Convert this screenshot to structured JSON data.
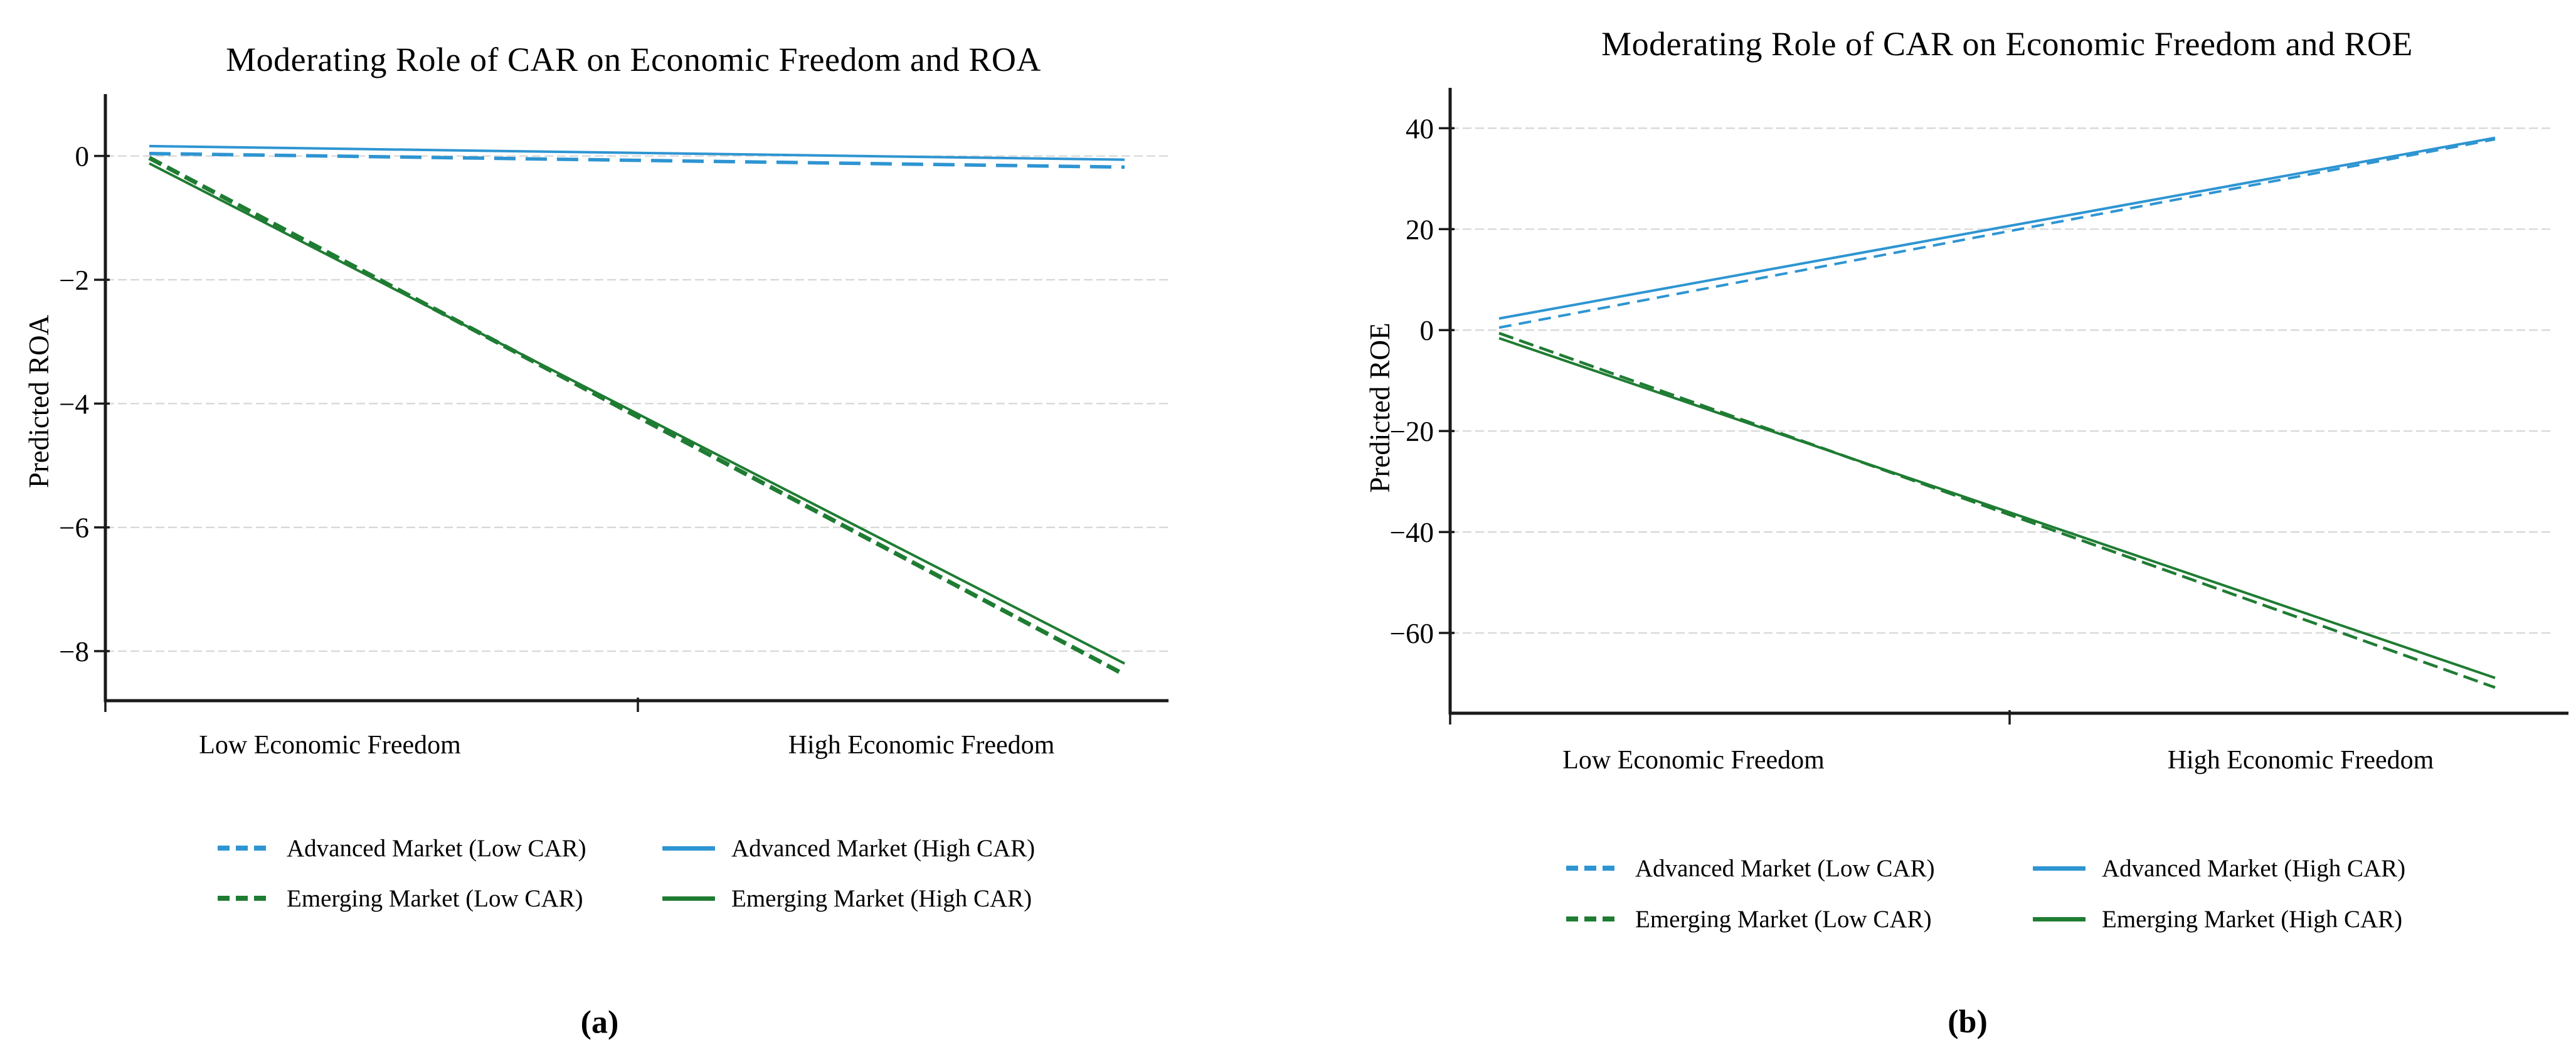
{
  "page": {
    "background": "#ffffff"
  },
  "style": {
    "axis_color": "#1a1a1a",
    "grid_color": "#d6d6d6",
    "text_color": "#000000",
    "advanced_color": "#2e95d2",
    "emerging_color": "#1f7c33"
  },
  "chart_data": [
    {
      "type": "line",
      "title": "Moderating Role of CAR on Economic Freedom and ROA",
      "ylabel": "Predicted ROA",
      "xlabel": "",
      "caption": "(a)",
      "x_categories": [
        "Low Economic Freedom",
        "High Economic Freedom"
      ],
      "y_ticks": [
        0,
        -2,
        -4,
        -6,
        -8
      ],
      "ylim": [
        1.0,
        -8.8
      ],
      "grid": true,
      "legend_position": "bottom",
      "series": [
        {
          "name": "advanced-market-low-car",
          "label": "Advanced Market (Low CAR)",
          "color": "#2e95d2",
          "line_style": "dashed",
          "values": [
            0.04,
            -0.18
          ]
        },
        {
          "name": "advanced-market-high-car",
          "label": "Advanced Market (High CAR)",
          "color": "#2e95d2",
          "line_style": "solid",
          "values": [
            0.16,
            -0.06
          ]
        },
        {
          "name": "emerging-market-low-car",
          "label": "Emerging Market (Low CAR)",
          "color": "#1f7c33",
          "line_style": "dashed",
          "values": [
            -0.03,
            -8.38
          ]
        },
        {
          "name": "emerging-market-high-car",
          "label": "Emerging Market (High CAR)",
          "color": "#1f7c33",
          "line_style": "solid",
          "values": [
            -0.12,
            -8.2
          ]
        }
      ]
    },
    {
      "type": "line",
      "title": "Moderating Role of CAR on Economic Freedom and ROE",
      "ylabel": "Predicted ROE",
      "xlabel": "",
      "caption": "(b)",
      "x_categories": [
        "Low Economic Freedom",
        "High Economic Freedom"
      ],
      "y_ticks": [
        40,
        20,
        0,
        -20,
        -40,
        -60
      ],
      "ylim": [
        48,
        -75.9
      ],
      "grid": true,
      "legend_position": "bottom",
      "series": [
        {
          "name": "advanced-market-low-car",
          "label": "Advanced Market (Low CAR)",
          "color": "#2e95d2",
          "line_style": "dashed",
          "values": [
            0.5,
            37.8
          ]
        },
        {
          "name": "advanced-market-high-car",
          "label": "Advanced Market (High CAR)",
          "color": "#2e95d2",
          "line_style": "solid",
          "values": [
            2.3,
            38.1
          ]
        },
        {
          "name": "emerging-market-low-car",
          "label": "Emerging Market (Low CAR)",
          "color": "#1f7c33",
          "line_style": "dashed",
          "values": [
            -0.6,
            -70.8
          ]
        },
        {
          "name": "emerging-market-high-car",
          "label": "Emerging Market (High CAR)",
          "color": "#1f7c33",
          "line_style": "solid",
          "values": [
            -1.6,
            -68.9
          ]
        }
      ]
    }
  ]
}
